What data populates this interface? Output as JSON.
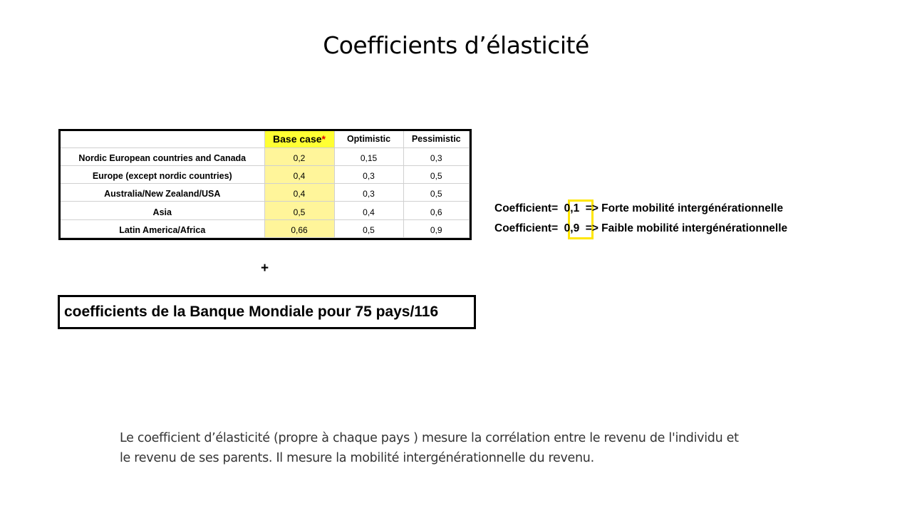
{
  "slide": {
    "title": "Coefficients d’élasticité"
  },
  "table": {
    "headers": {
      "base_case": "Base case",
      "base_case_marker": "*",
      "optimistic": "Optimistic",
      "pessimistic": "Pessimistic"
    },
    "rows": [
      {
        "region": "Nordic European countries and Canada",
        "base": "0,2",
        "optimistic": "0,15",
        "pessimistic": "0,3"
      },
      {
        "region": "Europe (except nordic countries)",
        "base": "0,4",
        "optimistic": "0,3",
        "pessimistic": "0,5"
      },
      {
        "region": "Australia/New Zealand/USA",
        "base": "0,4",
        "optimistic": "0,3",
        "pessimistic": "0,5"
      },
      {
        "region": "Asia",
        "base": "0,5",
        "optimistic": "0,4",
        "pessimistic": "0,6"
      },
      {
        "region": "Latin America/Africa",
        "base": "0,66",
        "optimistic": "0,5",
        "pessimistic": "0,9"
      }
    ],
    "highlight_color": "#fff59a",
    "header_highlight_color": "#ffff33"
  },
  "plus": "+",
  "world_bank_note": "coefficients de la Banque Mondiale pour 75 pays/116",
  "legend": [
    {
      "prefix": "Coefficient=",
      "value": "0,1",
      "text": "=> Forte mobilité intergénérationnelle"
    },
    {
      "prefix": "Coefficient=",
      "value": "0,9",
      "text": "=> Faible mobilité intergénérationnelle"
    }
  ],
  "legend_box_color": "#ffe600",
  "description": {
    "line1": "Le coefficient d’élasticité (propre à chaque pays ) mesure la corrélation entre le revenu de l'individu et",
    "line2": "le revenu de ses parents.   Il mesure la mobilité intergénérationnelle du revenu."
  }
}
